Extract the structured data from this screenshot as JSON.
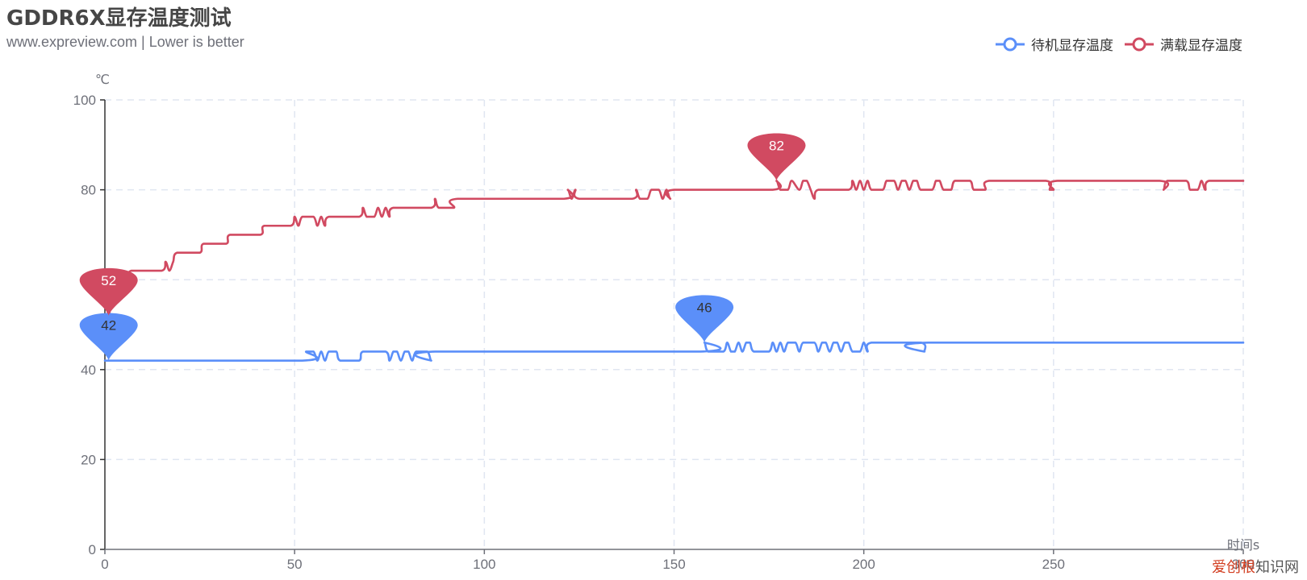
{
  "header": {
    "title": "GDDR6X显存温度测试",
    "subtitle": "www.expreview.com  | Lower is better"
  },
  "watermark": {
    "part1": "爱创根",
    "part2": "知识网"
  },
  "chart_data": {
    "type": "line",
    "xlabel": "时间s",
    "ylabel": "℃",
    "xlim": [
      0,
      300
    ],
    "ylim": [
      0,
      100
    ],
    "x_ticks": [
      "0",
      "50",
      "100",
      "150",
      "200",
      "250",
      "300"
    ],
    "y_ticks": [
      "0",
      "20",
      "40",
      "60",
      "80",
      "100"
    ],
    "grid": true,
    "legend_position": "top-right",
    "series": [
      {
        "name": "待机显存温度",
        "color": "#5b8ff9",
        "label_color": "#333333",
        "points": [
          [
            0,
            42
          ],
          [
            52,
            42
          ],
          [
            53,
            44
          ],
          [
            55,
            44
          ],
          [
            56,
            42
          ],
          [
            57,
            44
          ],
          [
            58,
            42
          ],
          [
            59,
            44
          ],
          [
            61,
            44
          ],
          [
            62,
            42
          ],
          [
            67,
            42
          ],
          [
            68,
            44
          ],
          [
            74,
            44
          ],
          [
            75,
            42
          ],
          [
            76,
            44
          ],
          [
            77,
            44
          ],
          [
            78,
            42
          ],
          [
            79,
            44
          ],
          [
            80,
            44
          ],
          [
            81,
            42
          ],
          [
            82,
            44
          ],
          [
            85,
            44
          ],
          [
            86,
            42
          ],
          [
            87,
            44
          ],
          [
            157,
            44
          ],
          [
            158,
            46
          ],
          [
            159,
            44
          ],
          [
            163,
            44
          ],
          [
            164,
            46
          ],
          [
            165,
            44
          ],
          [
            166,
            44
          ],
          [
            167,
            46
          ],
          [
            168,
            44
          ],
          [
            169,
            46
          ],
          [
            170,
            46
          ],
          [
            171,
            44
          ],
          [
            175,
            44
          ],
          [
            176,
            46
          ],
          [
            177,
            44
          ],
          [
            178,
            46
          ],
          [
            179,
            44
          ],
          [
            180,
            46
          ],
          [
            182,
            46
          ],
          [
            183,
            44
          ],
          [
            184,
            46
          ],
          [
            187,
            46
          ],
          [
            188,
            44
          ],
          [
            189,
            46
          ],
          [
            190,
            46
          ],
          [
            191,
            44
          ],
          [
            192,
            46
          ],
          [
            193,
            46
          ],
          [
            194,
            44
          ],
          [
            195,
            46
          ],
          [
            196,
            46
          ],
          [
            197,
            44
          ],
          [
            199,
            44
          ],
          [
            200,
            46
          ],
          [
            201,
            44
          ],
          [
            202,
            46
          ],
          [
            215,
            46
          ],
          [
            216,
            44
          ],
          [
            217,
            46
          ],
          [
            300,
            46
          ]
        ],
        "markers": [
          {
            "x": 1,
            "y": 42,
            "label": "42"
          },
          {
            "x": 158,
            "y": 46,
            "label": "46"
          }
        ]
      },
      {
        "name": "满载显存温度",
        "color": "#d14a61",
        "label_color": "#ffffff",
        "points": [
          [
            0,
            58
          ],
          [
            1,
            52
          ],
          [
            2,
            58
          ],
          [
            3,
            58
          ],
          [
            4,
            60
          ],
          [
            6,
            60
          ],
          [
            7,
            62
          ],
          [
            15,
            62
          ],
          [
            16,
            64
          ],
          [
            17,
            62
          ],
          [
            18,
            64
          ],
          [
            19,
            66
          ],
          [
            25,
            66
          ],
          [
            26,
            68
          ],
          [
            32,
            68
          ],
          [
            33,
            70
          ],
          [
            41,
            70
          ],
          [
            42,
            72
          ],
          [
            49,
            72
          ],
          [
            50,
            74
          ],
          [
            51,
            72
          ],
          [
            52,
            74
          ],
          [
            55,
            74
          ],
          [
            56,
            72
          ],
          [
            57,
            74
          ],
          [
            58,
            72
          ],
          [
            59,
            74
          ],
          [
            67,
            74
          ],
          [
            68,
            76
          ],
          [
            69,
            74
          ],
          [
            71,
            74
          ],
          [
            72,
            76
          ],
          [
            73,
            74
          ],
          [
            74,
            76
          ],
          [
            75,
            74
          ],
          [
            76,
            76
          ],
          [
            86,
            76
          ],
          [
            87,
            78
          ],
          [
            88,
            76
          ],
          [
            92,
            76
          ],
          [
            93,
            78
          ],
          [
            121,
            78
          ],
          [
            122,
            80
          ],
          [
            123,
            78
          ],
          [
            124,
            80
          ],
          [
            125,
            78
          ],
          [
            139,
            78
          ],
          [
            140,
            80
          ],
          [
            141,
            78
          ],
          [
            143,
            78
          ],
          [
            144,
            80
          ],
          [
            146,
            80
          ],
          [
            147,
            78
          ],
          [
            148,
            80
          ],
          [
            149,
            78
          ],
          [
            150,
            80
          ],
          [
            176,
            80
          ],
          [
            177,
            82
          ],
          [
            178,
            80
          ],
          [
            180,
            80
          ],
          [
            181,
            82
          ],
          [
            183,
            80
          ],
          [
            184,
            82
          ],
          [
            185,
            82
          ],
          [
            186,
            80
          ],
          [
            187,
            78
          ],
          [
            188,
            80
          ],
          [
            196,
            80
          ],
          [
            197,
            82
          ],
          [
            198,
            80
          ],
          [
            199,
            82
          ],
          [
            200,
            80
          ],
          [
            201,
            82
          ],
          [
            202,
            80
          ],
          [
            205,
            80
          ],
          [
            206,
            82
          ],
          [
            208,
            82
          ],
          [
            209,
            80
          ],
          [
            210,
            82
          ],
          [
            211,
            82
          ],
          [
            212,
            80
          ],
          [
            213,
            82
          ],
          [
            214,
            82
          ],
          [
            215,
            80
          ],
          [
            218,
            80
          ],
          [
            219,
            82
          ],
          [
            220,
            82
          ],
          [
            221,
            80
          ],
          [
            223,
            80
          ],
          [
            224,
            82
          ],
          [
            228,
            82
          ],
          [
            229,
            80
          ],
          [
            232,
            80
          ],
          [
            233,
            82
          ],
          [
            248,
            82
          ],
          [
            249,
            80
          ],
          [
            250,
            80
          ],
          [
            251,
            82
          ],
          [
            278,
            82
          ],
          [
            279,
            80
          ],
          [
            280,
            82
          ],
          [
            285,
            82
          ],
          [
            286,
            80
          ],
          [
            288,
            80
          ],
          [
            289,
            82
          ],
          [
            290,
            80
          ],
          [
            291,
            82
          ],
          [
            300,
            82
          ]
        ],
        "markers": [
          {
            "x": 1,
            "y": 52,
            "label": "52"
          },
          {
            "x": 177,
            "y": 82,
            "label": "82"
          }
        ]
      }
    ]
  }
}
